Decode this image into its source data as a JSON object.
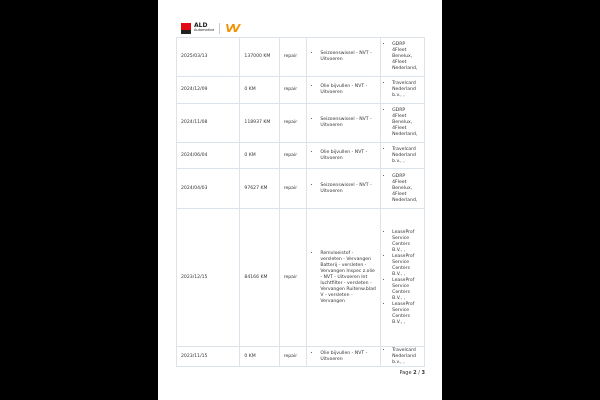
{
  "header": {
    "brand_line1": "ALD",
    "brand_line2": "Automotive",
    "brand_colors": {
      "red": "#e30613",
      "orange": "#f39200"
    }
  },
  "rows": [
    {
      "date": "2025/03/13",
      "km": "137000 KM",
      "type": "repair",
      "works": [
        "Seizoenswissel - NVT - Uitvoeren"
      ],
      "suppliers": [
        "GDRP 4Fleet Benelux, 4Fleet Nederland,"
      ],
      "height": 39
    },
    {
      "date": "2024/12/09",
      "km": "0 KM",
      "type": "repair",
      "works": [
        "Olie bijvullen - NVT - Uitvoeren"
      ],
      "suppliers": [
        "Travelcard Nederland b.v., ,"
      ],
      "height": 27
    },
    {
      "date": "2024/11/08",
      "km": "118937 KM",
      "type": "repair",
      "works": [
        "Seizoenswissel - NVT - Uitvoeren"
      ],
      "suppliers": [
        "GDRP 4Fleet Benelux, 4Fleet Nederland,"
      ],
      "height": 39
    },
    {
      "date": "2024/06/04",
      "km": "0 KM",
      "type": "repair",
      "works": [
        "Olie bijvullen - NVT - Uitvoeren"
      ],
      "suppliers": [
        "Travelcard Nederland b.v., ,"
      ],
      "height": 26
    },
    {
      "date": "2024/04/03",
      "km": "97627 KM",
      "type": "repair",
      "works": [
        "Seizoenswissel - NVT - Uitvoeren"
      ],
      "suppliers": [
        "GDRP 4Fleet Benelux, 4Fleet Nederland,"
      ],
      "height": 40
    },
    {
      "date": "2023/12/15",
      "km": "84166 KM",
      "type": "repair",
      "works": [
        "Remvloeistof - versleten - Vervangen Batterij - versleten - Vervangen Inspec z.olie - NVT - Uitvoeren Int luchtfilter - versleten - Vervangen Ruitenw.blad V - versleten - Vervangen"
      ],
      "suppliers": [
        "LeaseProf Service Centers B.V., ,",
        "LeaseProf Service Centers B.V., ,",
        "LeaseProf Service Centers B.V., ,",
        "LeaseProf Service Centers B.V., ,"
      ],
      "height": 138
    },
    {
      "date": "2023/11/15",
      "km": "0 KM",
      "type": "repair",
      "works": [
        "Olie bijvullen - NVT - Uitvoeren"
      ],
      "suppliers": [
        "Travelcard Nederland b.v., ,"
      ],
      "height": 20
    }
  ],
  "footer": {
    "prefix": "Page",
    "current": "2",
    "sep": "/",
    "total": "3"
  }
}
